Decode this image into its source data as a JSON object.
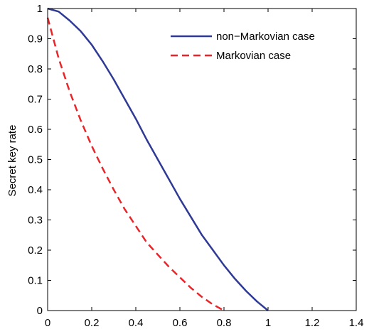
{
  "chart_data": {
    "type": "line",
    "title": "",
    "xlabel": "",
    "ylabel": "Secret key rate",
    "xlim": [
      0,
      1.4
    ],
    "ylim": [
      0,
      1
    ],
    "x_ticks": [
      "0",
      "0.2",
      "0.4",
      "0.6",
      "0.8",
      "1",
      "1.2",
      "1.4"
    ],
    "y_ticks": [
      "0",
      "0.1",
      "0.2",
      "0.3",
      "0.4",
      "0.5",
      "0.6",
      "0.7",
      "0.8",
      "0.9",
      "1"
    ],
    "grid": false,
    "legend_position": "top-right",
    "series": [
      {
        "name": "non−Markovian case",
        "style": "solid",
        "color": "#2e3a94",
        "x": [
          0,
          0.05,
          0.1,
          0.15,
          0.2,
          0.25,
          0.3,
          0.35,
          0.4,
          0.45,
          0.5,
          0.55,
          0.6,
          0.65,
          0.7,
          0.75,
          0.8,
          0.85,
          0.9,
          0.95,
          1.0
        ],
        "y": [
          1.0,
          0.99,
          0.96,
          0.925,
          0.88,
          0.825,
          0.765,
          0.7,
          0.635,
          0.565,
          0.5,
          0.435,
          0.37,
          0.31,
          0.25,
          0.2,
          0.15,
          0.105,
          0.065,
          0.03,
          0.0
        ]
      },
      {
        "name": "Markovian case",
        "style": "dashed",
        "color": "#e8262a",
        "x": [
          0,
          0.05,
          0.1,
          0.15,
          0.2,
          0.25,
          0.3,
          0.35,
          0.4,
          0.45,
          0.5,
          0.55,
          0.6,
          0.65,
          0.7,
          0.75,
          0.8
        ],
        "y": [
          0.97,
          0.835,
          0.725,
          0.63,
          0.545,
          0.47,
          0.4,
          0.335,
          0.28,
          0.225,
          0.185,
          0.145,
          0.11,
          0.075,
          0.045,
          0.02,
          0.0
        ]
      }
    ]
  }
}
